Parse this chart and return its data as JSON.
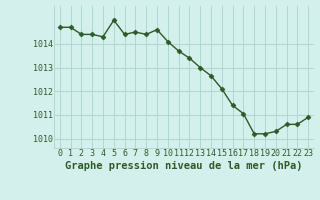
{
  "x": [
    0,
    1,
    2,
    3,
    4,
    5,
    6,
    7,
    8,
    9,
    10,
    11,
    12,
    13,
    14,
    15,
    16,
    17,
    18,
    19,
    20,
    21,
    22,
    23
  ],
  "y": [
    1014.7,
    1014.7,
    1014.4,
    1014.4,
    1014.3,
    1015.0,
    1014.4,
    1014.5,
    1014.4,
    1014.6,
    1014.1,
    1013.7,
    1013.4,
    1013.0,
    1012.65,
    1012.1,
    1011.4,
    1011.05,
    1010.2,
    1010.2,
    1010.3,
    1010.6,
    1010.6,
    1010.9
  ],
  "line_color": "#2d5a27",
  "marker": "D",
  "markersize": 2.5,
  "linewidth": 1.0,
  "background_color": "#d4f0ec",
  "grid_color": "#b0d8d0",
  "title": "Graphe pression niveau de la mer (hPa)",
  "xlabel_ticks": [
    "0",
    "1",
    "2",
    "3",
    "4",
    "5",
    "6",
    "7",
    "8",
    "9",
    "10",
    "11",
    "12",
    "13",
    "14",
    "15",
    "16",
    "17",
    "18",
    "19",
    "20",
    "21",
    "22",
    "23"
  ],
  "yticks": [
    1010,
    1011,
    1012,
    1013,
    1014
  ],
  "ylim": [
    1009.6,
    1015.6
  ],
  "xlim": [
    -0.5,
    23.5
  ],
  "title_fontsize": 7.5,
  "tick_fontsize": 6.0,
  "tick_color": "#2d5a27",
  "title_color": "#2d5a27",
  "title_fontweight": "bold"
}
